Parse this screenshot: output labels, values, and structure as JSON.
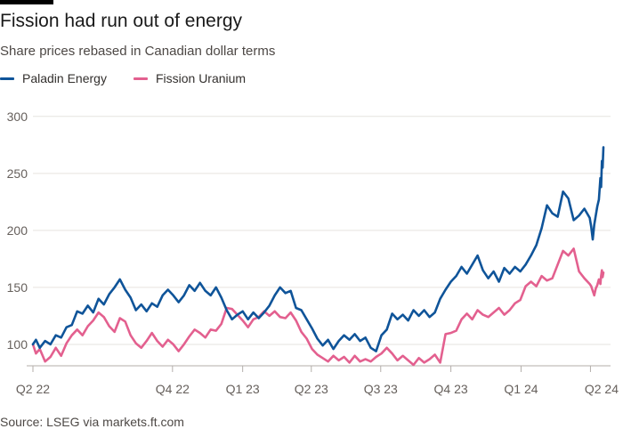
{
  "title": "Fission had run out of energy",
  "subtitle": "Share prices rebased in Canadian dollar terms",
  "source": "Source: LSEG via markets.ft.com",
  "chart_data": {
    "type": "line",
    "x_range": [
      "2022-04-01",
      "2024-04-18"
    ],
    "x_ticks": [
      {
        "date": "2022-04-01",
        "label": "Q2 22"
      },
      {
        "date": "2022-10-01",
        "label": "Q4 22"
      },
      {
        "date": "2023-01-01",
        "label": "Q1 23"
      },
      {
        "date": "2023-04-01",
        "label": "Q2 23"
      },
      {
        "date": "2023-07-01",
        "label": "Q3 23"
      },
      {
        "date": "2023-10-01",
        "label": "Q4 23"
      },
      {
        "date": "2024-01-01",
        "label": "Q1 24"
      },
      {
        "date": "2024-04-01",
        "label": "Q2 24"
      }
    ],
    "y_ticks": [
      100,
      150,
      200,
      250,
      300
    ],
    "ylim": [
      82,
      310
    ],
    "grid": true,
    "legend_position": "top-left",
    "series": [
      {
        "name": "Paladin Energy",
        "color": "#0f5499",
        "points": [
          [
            "2022-04-01",
            100
          ],
          [
            "2022-04-05",
            104
          ],
          [
            "2022-04-10",
            97
          ],
          [
            "2022-04-17",
            103
          ],
          [
            "2022-04-24",
            100
          ],
          [
            "2022-05-01",
            108
          ],
          [
            "2022-05-08",
            106
          ],
          [
            "2022-05-15",
            115
          ],
          [
            "2022-05-22",
            117
          ],
          [
            "2022-05-29",
            129
          ],
          [
            "2022-06-05",
            127
          ],
          [
            "2022-06-12",
            134
          ],
          [
            "2022-06-19",
            128
          ],
          [
            "2022-06-26",
            140
          ],
          [
            "2022-07-03",
            135
          ],
          [
            "2022-07-10",
            144
          ],
          [
            "2022-07-17",
            150
          ],
          [
            "2022-07-24",
            157
          ],
          [
            "2022-07-31",
            148
          ],
          [
            "2022-08-07",
            141
          ],
          [
            "2022-08-14",
            130
          ],
          [
            "2022-08-21",
            135
          ],
          [
            "2022-08-28",
            129
          ],
          [
            "2022-09-04",
            136
          ],
          [
            "2022-09-11",
            133
          ],
          [
            "2022-09-18",
            143
          ],
          [
            "2022-09-25",
            148
          ],
          [
            "2022-10-02",
            143
          ],
          [
            "2022-10-09",
            137
          ],
          [
            "2022-10-16",
            143
          ],
          [
            "2022-10-23",
            152
          ],
          [
            "2022-10-30",
            147
          ],
          [
            "2022-11-06",
            154
          ],
          [
            "2022-11-13",
            147
          ],
          [
            "2022-11-20",
            143
          ],
          [
            "2022-11-27",
            150
          ],
          [
            "2022-12-04",
            141
          ],
          [
            "2022-12-11",
            130
          ],
          [
            "2022-12-18",
            122
          ],
          [
            "2022-12-25",
            126
          ],
          [
            "2023-01-01",
            129
          ],
          [
            "2023-01-08",
            122
          ],
          [
            "2023-01-15",
            128
          ],
          [
            "2023-01-22",
            123
          ],
          [
            "2023-01-29",
            128
          ],
          [
            "2023-02-05",
            134
          ],
          [
            "2023-02-12",
            143
          ],
          [
            "2023-02-19",
            150
          ],
          [
            "2023-02-26",
            145
          ],
          [
            "2023-03-05",
            147
          ],
          [
            "2023-03-12",
            132
          ],
          [
            "2023-03-19",
            130
          ],
          [
            "2023-03-26",
            122
          ],
          [
            "2023-04-02",
            114
          ],
          [
            "2023-04-09",
            105
          ],
          [
            "2023-04-16",
            99
          ],
          [
            "2023-04-23",
            104
          ],
          [
            "2023-04-30",
            96
          ],
          [
            "2023-05-07",
            103
          ],
          [
            "2023-05-14",
            108
          ],
          [
            "2023-05-21",
            104
          ],
          [
            "2023-05-28",
            109
          ],
          [
            "2023-06-04",
            103
          ],
          [
            "2023-06-11",
            106
          ],
          [
            "2023-06-18",
            97
          ],
          [
            "2023-06-25",
            94
          ],
          [
            "2023-07-02",
            108
          ],
          [
            "2023-07-09",
            113
          ],
          [
            "2023-07-16",
            127
          ],
          [
            "2023-07-23",
            122
          ],
          [
            "2023-07-30",
            126
          ],
          [
            "2023-08-06",
            121
          ],
          [
            "2023-08-13",
            130
          ],
          [
            "2023-08-20",
            125
          ],
          [
            "2023-08-27",
            130
          ],
          [
            "2023-09-03",
            124
          ],
          [
            "2023-09-10",
            128
          ],
          [
            "2023-09-17",
            140
          ],
          [
            "2023-09-24",
            148
          ],
          [
            "2023-10-01",
            155
          ],
          [
            "2023-10-08",
            160
          ],
          [
            "2023-10-15",
            168
          ],
          [
            "2023-10-22",
            162
          ],
          [
            "2023-10-29",
            170
          ],
          [
            "2023-11-05",
            178
          ],
          [
            "2023-11-12",
            165
          ],
          [
            "2023-11-19",
            158
          ],
          [
            "2023-11-26",
            164
          ],
          [
            "2023-12-03",
            155
          ],
          [
            "2023-12-10",
            167
          ],
          [
            "2023-12-17",
            162
          ],
          [
            "2023-12-24",
            168
          ],
          [
            "2023-12-31",
            164
          ],
          [
            "2024-01-07",
            170
          ],
          [
            "2024-01-14",
            178
          ],
          [
            "2024-01-21",
            187
          ],
          [
            "2024-01-28",
            202
          ],
          [
            "2024-02-04",
            222
          ],
          [
            "2024-02-11",
            215
          ],
          [
            "2024-02-18",
            212
          ],
          [
            "2024-02-25",
            234
          ],
          [
            "2024-03-03",
            228
          ],
          [
            "2024-03-10",
            209
          ],
          [
            "2024-03-17",
            213
          ],
          [
            "2024-03-24",
            219
          ],
          [
            "2024-03-31",
            211
          ],
          [
            "2024-04-02",
            203
          ],
          [
            "2024-04-04",
            192
          ],
          [
            "2024-04-06",
            205
          ],
          [
            "2024-04-08",
            213
          ],
          [
            "2024-04-10",
            221
          ],
          [
            "2024-04-12",
            227
          ],
          [
            "2024-04-14",
            246
          ],
          [
            "2024-04-15",
            238
          ],
          [
            "2024-04-16",
            261
          ],
          [
            "2024-04-17",
            255
          ],
          [
            "2024-04-18",
            273
          ]
        ]
      },
      {
        "name": "Fission Uranium",
        "color": "#e3608f",
        "points": [
          [
            "2022-04-01",
            100
          ],
          [
            "2022-04-05",
            92
          ],
          [
            "2022-04-10",
            96
          ],
          [
            "2022-04-17",
            85
          ],
          [
            "2022-04-24",
            89
          ],
          [
            "2022-05-01",
            97
          ],
          [
            "2022-05-08",
            90
          ],
          [
            "2022-05-15",
            101
          ],
          [
            "2022-05-22",
            108
          ],
          [
            "2022-05-29",
            113
          ],
          [
            "2022-06-05",
            108
          ],
          [
            "2022-06-12",
            116
          ],
          [
            "2022-06-19",
            121
          ],
          [
            "2022-06-26",
            128
          ],
          [
            "2022-07-03",
            124
          ],
          [
            "2022-07-10",
            116
          ],
          [
            "2022-07-17",
            111
          ],
          [
            "2022-07-24",
            123
          ],
          [
            "2022-07-31",
            120
          ],
          [
            "2022-08-07",
            108
          ],
          [
            "2022-08-14",
            101
          ],
          [
            "2022-08-21",
            97
          ],
          [
            "2022-08-28",
            103
          ],
          [
            "2022-09-04",
            110
          ],
          [
            "2022-09-11",
            103
          ],
          [
            "2022-09-18",
            98
          ],
          [
            "2022-09-25",
            104
          ],
          [
            "2022-10-02",
            100
          ],
          [
            "2022-10-09",
            94
          ],
          [
            "2022-10-16",
            100
          ],
          [
            "2022-10-23",
            107
          ],
          [
            "2022-10-30",
            113
          ],
          [
            "2022-11-06",
            110
          ],
          [
            "2022-11-13",
            106
          ],
          [
            "2022-11-20",
            113
          ],
          [
            "2022-11-27",
            112
          ],
          [
            "2022-12-04",
            118
          ],
          [
            "2022-12-11",
            132
          ],
          [
            "2022-12-18",
            131
          ],
          [
            "2022-12-25",
            126
          ],
          [
            "2023-01-01",
            121
          ],
          [
            "2023-01-08",
            115
          ],
          [
            "2023-01-15",
            122
          ],
          [
            "2023-01-22",
            124
          ],
          [
            "2023-01-29",
            129
          ],
          [
            "2023-02-05",
            125
          ],
          [
            "2023-02-12",
            129
          ],
          [
            "2023-02-19",
            124
          ],
          [
            "2023-02-26",
            123
          ],
          [
            "2023-03-05",
            128
          ],
          [
            "2023-03-12",
            121
          ],
          [
            "2023-03-19",
            111
          ],
          [
            "2023-03-26",
            105
          ],
          [
            "2023-04-02",
            96
          ],
          [
            "2023-04-09",
            91
          ],
          [
            "2023-04-16",
            88
          ],
          [
            "2023-04-23",
            85
          ],
          [
            "2023-04-30",
            90
          ],
          [
            "2023-05-07",
            86
          ],
          [
            "2023-05-14",
            89
          ],
          [
            "2023-05-21",
            84
          ],
          [
            "2023-05-28",
            90
          ],
          [
            "2023-06-04",
            85
          ],
          [
            "2023-06-11",
            87
          ],
          [
            "2023-06-18",
            85
          ],
          [
            "2023-06-25",
            89
          ],
          [
            "2023-07-02",
            92
          ],
          [
            "2023-07-09",
            97
          ],
          [
            "2023-07-16",
            92
          ],
          [
            "2023-07-23",
            86
          ],
          [
            "2023-07-30",
            90
          ],
          [
            "2023-08-06",
            86
          ],
          [
            "2023-08-13",
            82
          ],
          [
            "2023-08-20",
            88
          ],
          [
            "2023-08-27",
            84
          ],
          [
            "2023-09-03",
            87
          ],
          [
            "2023-09-10",
            91
          ],
          [
            "2023-09-17",
            84
          ],
          [
            "2023-09-24",
            109
          ],
          [
            "2023-10-01",
            110
          ],
          [
            "2023-10-08",
            112
          ],
          [
            "2023-10-15",
            122
          ],
          [
            "2023-10-22",
            127
          ],
          [
            "2023-10-29",
            122
          ],
          [
            "2023-11-05",
            130
          ],
          [
            "2023-11-12",
            126
          ],
          [
            "2023-11-19",
            124
          ],
          [
            "2023-11-26",
            128
          ],
          [
            "2023-12-03",
            132
          ],
          [
            "2023-12-10",
            126
          ],
          [
            "2023-12-17",
            130
          ],
          [
            "2023-12-24",
            136
          ],
          [
            "2023-12-31",
            139
          ],
          [
            "2024-01-07",
            151
          ],
          [
            "2024-01-14",
            155
          ],
          [
            "2024-01-21",
            151
          ],
          [
            "2024-01-28",
            160
          ],
          [
            "2024-02-04",
            156
          ],
          [
            "2024-02-11",
            158
          ],
          [
            "2024-02-18",
            170
          ],
          [
            "2024-02-25",
            182
          ],
          [
            "2024-03-03",
            178
          ],
          [
            "2024-03-10",
            184
          ],
          [
            "2024-03-17",
            164
          ],
          [
            "2024-03-24",
            158
          ],
          [
            "2024-03-31",
            153
          ],
          [
            "2024-04-02",
            151
          ],
          [
            "2024-04-04",
            147
          ],
          [
            "2024-04-06",
            143
          ],
          [
            "2024-04-08",
            149
          ],
          [
            "2024-04-10",
            152
          ],
          [
            "2024-04-12",
            157
          ],
          [
            "2024-04-14",
            153
          ],
          [
            "2024-04-15",
            160
          ],
          [
            "2024-04-16",
            165
          ],
          [
            "2024-04-17",
            159
          ],
          [
            "2024-04-18",
            163
          ]
        ]
      }
    ]
  }
}
